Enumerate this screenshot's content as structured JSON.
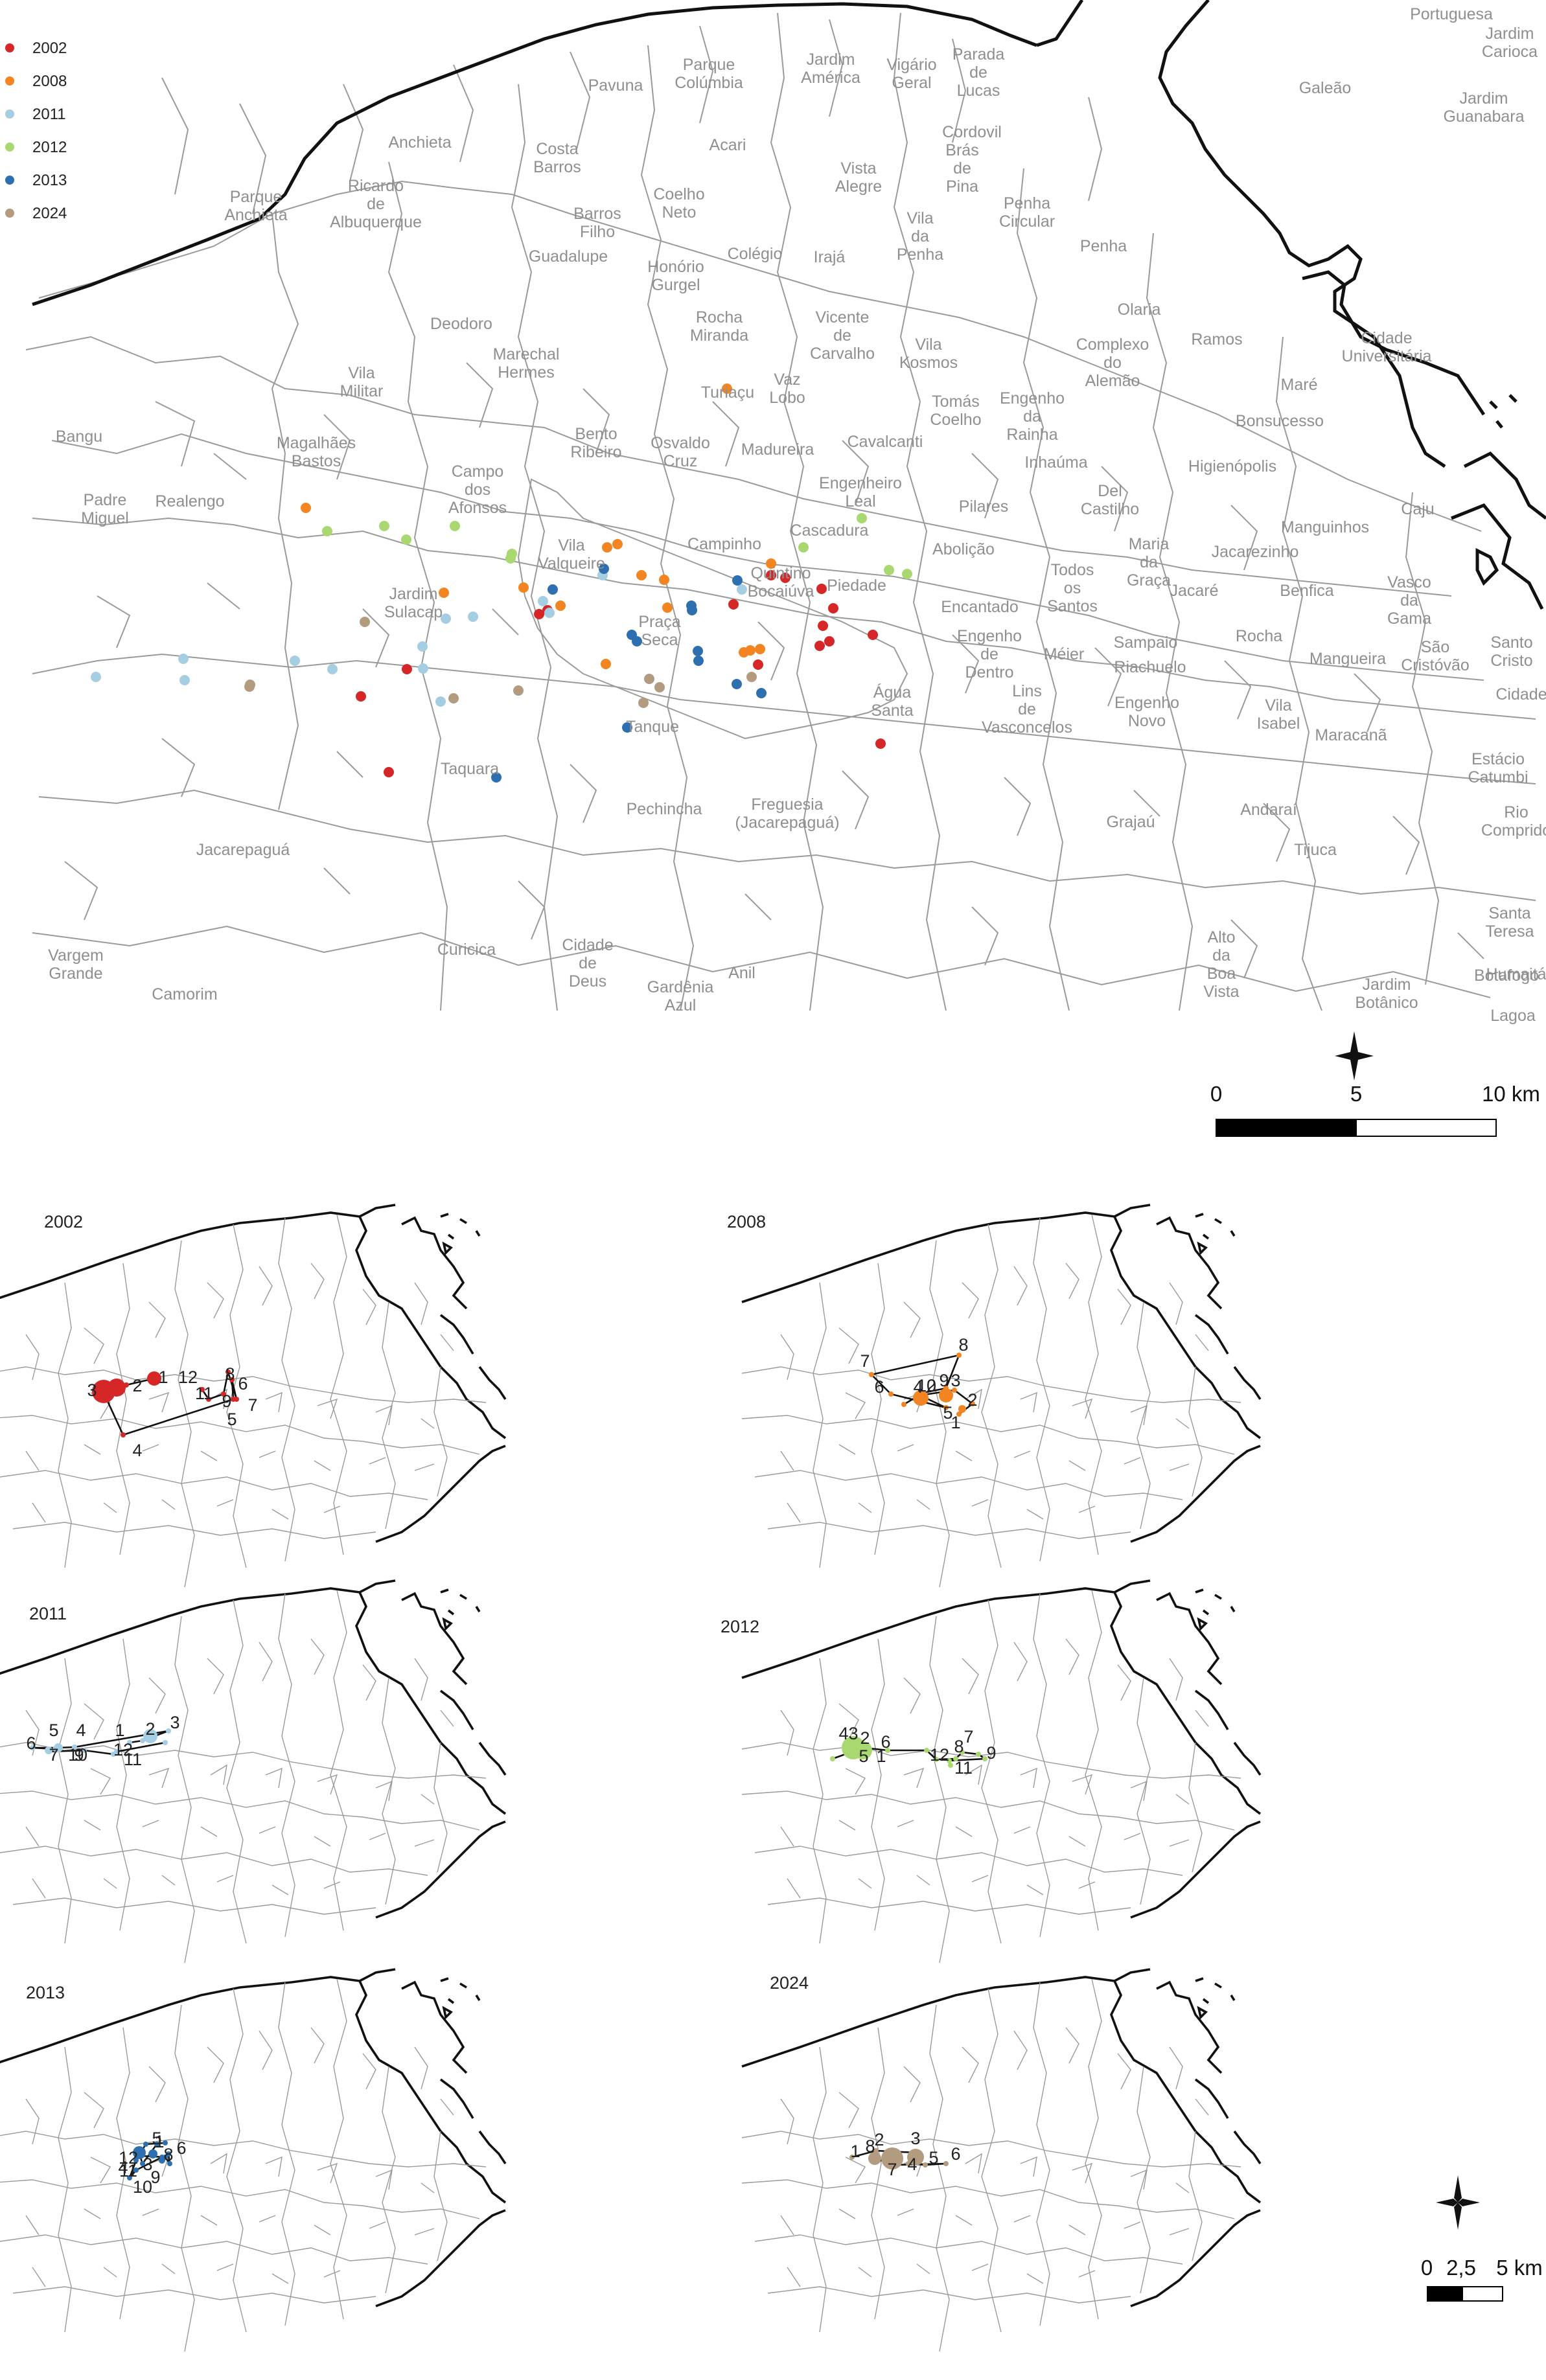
{
  "legend": [
    {
      "year": "2002",
      "color": "#d62728"
    },
    {
      "year": "2008",
      "color": "#f28522"
    },
    {
      "year": "2011",
      "color": "#a6cee3"
    },
    {
      "year": "2012",
      "color": "#a8d86f"
    },
    {
      "year": "2013",
      "color": "#2e6fb0"
    },
    {
      "year": "2024",
      "color": "#b39b80"
    }
  ],
  "neighborhoods": {
    "portuguesa": "Portuguesa",
    "jardim_carioca": [
      "Jardim",
      "Carioca"
    ],
    "jardim_guanabara": [
      "Jardim",
      "Guanabara"
    ],
    "galeao": "Galeão",
    "vigario_geral": [
      "Vigário",
      "Geral"
    ],
    "parada_lucas": [
      "Parada",
      "de",
      "Lucas"
    ],
    "jardim_america": [
      "Jardim",
      "América"
    ],
    "parque_colombia": [
      "Parque",
      "Colúmbia"
    ],
    "pavuna": "Pavuna",
    "cordovil": "Cordovil",
    "bras_de_pina": [
      "Brás",
      "de",
      "Pina"
    ],
    "penha_circular": [
      "Penha",
      "Circular"
    ],
    "acari": "Acari",
    "costa_barros": [
      "Costa",
      "Barros"
    ],
    "anchieta": "Anchieta",
    "parque_anchieta": [
      "Parque",
      "Anchieta"
    ],
    "ricardo_albuquerque": [
      "Ricardo",
      "de",
      "Albuquerque"
    ],
    "barros_filho": [
      "Barros",
      "Filho"
    ],
    "coelho_neto": [
      "Coelho",
      "Neto"
    ],
    "vista_alegre": [
      "Vista",
      "Alegre"
    ],
    "iraja": "Irajá",
    "guadalupe": "Guadalupe",
    "colegio": "Colégio",
    "vila_da_penha": [
      "Vila",
      "da",
      "Penha"
    ],
    "penha": "Penha",
    "honorio_gurgel": [
      "Honório",
      "Gurgel"
    ],
    "olaria": "Olaria",
    "deodoro": "Deodoro",
    "rocha_miranda": [
      "Rocha",
      "Miranda"
    ],
    "vicente_de_carvalho": [
      "Vicente",
      "de",
      "Carvalho"
    ],
    "ramos": "Ramos",
    "cidade_universitaria": [
      "Cidade",
      "Universitária"
    ],
    "marechal_hermes": [
      "Marechal",
      "Hermes"
    ],
    "complexo_do_alemao": [
      "Complexo",
      "do",
      "Alemão"
    ],
    "vila_militar": [
      "Vila",
      "Militar"
    ],
    "turiacu": "Turiaçu",
    "vaz_lobo": [
      "Vaz",
      "Lobo"
    ],
    "vila_kosmos": [
      "Vila",
      "Kosmos"
    ],
    "mare": "Maré",
    "bangu": "Bangu",
    "bento_ribeiro": [
      "Bento",
      "Ribeiro"
    ],
    "tomas_coelho": [
      "Tomás",
      "Coelho"
    ],
    "engenho_da_rainha": [
      "Engenho",
      "da",
      "Rainha"
    ],
    "bonsucesso": "Bonsucesso",
    "magalhaes_bastos": [
      "Magalhães",
      "Bastos"
    ],
    "oswaldo_cruz": [
      "Osvaldo",
      "Cruz"
    ],
    "madureira": "Madureira",
    "cavalcanti": "Cavalcanti",
    "inhauma": "Inhaúma",
    "padre_miguel": [
      "Padre",
      "Miguel"
    ],
    "realengo": "Realengo",
    "campo_dos_afonsos": [
      "Campo",
      "dos",
      "Afonsos"
    ],
    "engenheiro_leal": [
      "Engenheiro",
      "Leal"
    ],
    "higienopolis": "Higienópolis",
    "caju": "Caju",
    "pilares": "Pilares",
    "del_castilho": [
      "Del",
      "Castilho"
    ],
    "manguinhos": "Manguinhos",
    "cascadura": "Cascadura",
    "campinho": "Campinho",
    "maria_da_graca": [
      "Maria",
      "da",
      "Graça"
    ],
    "vila_valqueire": [
      "Vila",
      "Valqueire"
    ],
    "abolicao": "Abolição",
    "jacarezinho": "Jacarezinho",
    "quintino_bocaiuva": [
      "Quintino",
      "Bocaiúva"
    ],
    "todos_os_santos": [
      "Todos",
      "os",
      "Santos"
    ],
    "jardim_sulacap": [
      "Jardim",
      "Sulacap"
    ],
    "piedade": "Piedade",
    "jacare": "Jacaré",
    "benfica": "Benfica",
    "vasco_da_gama": [
      "Vasco",
      "da",
      "Gama"
    ],
    "praca_seca": [
      "Praça",
      "Seca"
    ],
    "encantado": "Encantado",
    "engenho_de_dentro": [
      "Engenho",
      "de",
      "Dentro"
    ],
    "meier": "Méier",
    "sampaio": "Sampaio",
    "riachuelo": "Riachuelo",
    "rocha": "Rocha",
    "mangueira": "Mangueira",
    "sao_cristovao": [
      "São",
      "Cristóvão"
    ],
    "santo_cristo": [
      "Santo",
      "Cristo"
    ],
    "agua_santa": [
      "Água",
      "Santa"
    ],
    "lins_de_vasconcelos": [
      "Lins",
      "de",
      "Vasconcelos"
    ],
    "engenho_novo": [
      "Engenho",
      "Novo"
    ],
    "vila_isabel": [
      "Vila",
      "Isabel"
    ],
    "cidade_nova": "Cidade",
    "tanque": "Tanque",
    "maracana": "Maracanã",
    "estacio_catumbi": [
      "Estácio",
      "Catumbi"
    ],
    "taquara": "Taquara",
    "pechincha": "Pechincha",
    "freguesia": [
      "Freguesia",
      "(Jacarepaguá)"
    ],
    "grajau": "Grajaú",
    "andarai": "Andaraí",
    "rio_comprido": [
      "Rio",
      "Comprido"
    ],
    "tijuca": "Tijuca",
    "jacarepagua": "Jacarepaguá",
    "santa_teresa": [
      "Santa",
      "Teresa"
    ],
    "alto_da_boa_vista": [
      "Alto",
      "da",
      "Boa",
      "Vista"
    ],
    "botafogo": "Botafogo",
    "humaita": "Humaitá",
    "vargem_grande": [
      "Vargem",
      "Grande"
    ],
    "camorim": "Camorim",
    "curicica": "Curicica",
    "cidade_de_deus": [
      "Cidade",
      "de",
      "Deus"
    ],
    "anil": "Anil",
    "gardenia_azul": [
      "Gardênia",
      "Azul"
    ],
    "jardim_botanico": [
      "Jardim",
      "Botânico"
    ],
    "lagoa": "Lagoa"
  },
  "scale_main": {
    "labels": [
      "0",
      "5",
      "10 km"
    ]
  },
  "scale_small": {
    "labels": [
      "0",
      "2,5",
      "5 km"
    ]
  },
  "panels": [
    {
      "title": "2002",
      "color": "#d62728"
    },
    {
      "title": "2008",
      "color": "#f28522"
    },
    {
      "title": "2011",
      "color": "#a6cee3"
    },
    {
      "title": "2012",
      "color": "#a8d86f"
    },
    {
      "title": "2013",
      "color": "#2e6fb0"
    },
    {
      "title": "2024",
      "color": "#b39b80"
    }
  ],
  "sequences": {
    "2002": [
      "1",
      "2",
      "3",
      "4",
      "5",
      "6",
      "7",
      "8",
      "9",
      "11",
      "12"
    ],
    "2008": [
      "1",
      "2",
      "3",
      "4",
      "5",
      "6",
      "7",
      "8",
      "9",
      "10",
      "12"
    ],
    "2011": [
      "1",
      "2",
      "3",
      "4",
      "5",
      "6",
      "7",
      "9",
      "10",
      "11",
      "12"
    ],
    "2012": [
      "1",
      "2",
      "3",
      "4",
      "5",
      "6",
      "7",
      "8",
      "9",
      "11",
      "12"
    ],
    "2013": [
      "1",
      "3",
      "4",
      "5",
      "6",
      "8",
      "9",
      "10",
      "11",
      "12"
    ],
    "2024": [
      "1",
      "2",
      "3",
      "4",
      "5",
      "6",
      "7",
      "8"
    ]
  }
}
